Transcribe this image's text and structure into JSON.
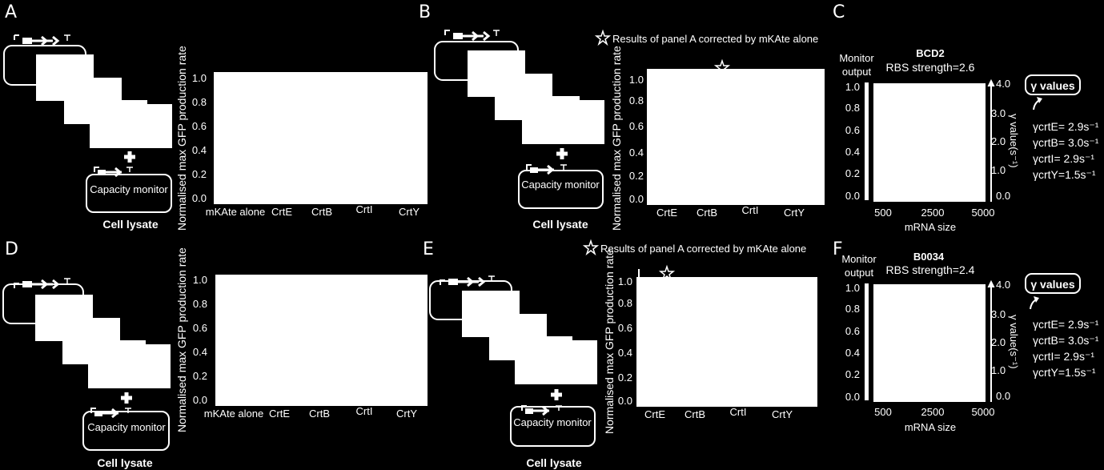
{
  "colors": {
    "background": "#000000",
    "foreground": "#ffffff"
  },
  "panel_labels": [
    "A",
    "B",
    "C",
    "D",
    "E",
    "F"
  ],
  "common": {
    "ylabel": "Normalised max GFP production rate",
    "capacity_monitor": "Capacity monitor",
    "cell_lysate": "Cell lysate",
    "yticks": [
      "0.0",
      "0.2",
      "0.4",
      "0.6",
      "0.8",
      "1.0"
    ],
    "yticks_be": [
      "0.0",
      "0.2",
      "0.4",
      "0.6",
      "0.8",
      "1.0"
    ],
    "star_note": "Results of panel A corrected by mKAte alone"
  },
  "panel_c": {
    "title": "BCD2",
    "subtitle": "RBS strength=2.6",
    "monitor_output_1": "Monitor",
    "monitor_output_2": "output",
    "left_ticks": [
      "0.0",
      "0.2",
      "0.4",
      "0.6",
      "0.8",
      "1.0"
    ],
    "right_ticks": [
      "0.0",
      "1.0",
      "2.0",
      "3.0",
      "4.0"
    ],
    "right_label": "γ value(s⁻¹)",
    "x_ticks": [
      "500",
      "2500",
      "5000"
    ],
    "xlabel": "mRNA size",
    "gamma_box": "γ values",
    "gamma_lines": [
      "γcrtE= 2.9s⁻¹",
      "γcrtB= 3.0s⁻¹",
      "γcrtI= 2.9s⁻¹",
      "γcrtY=1.5s⁻¹"
    ]
  },
  "panel_f": {
    "title": "B0034",
    "subtitle": "RBS strength=2.4"
  },
  "chart_data": [
    {
      "panel": "A",
      "type": "bar",
      "categories": [
        "mKAte alone",
        "CrtE",
        "CrtB",
        "CrtI",
        "CrtY"
      ],
      "ylabel": "Normalised max GFP production rate",
      "ylim": [
        0,
        1.0
      ]
    },
    {
      "panel": "B",
      "type": "bar",
      "categories": [
        "CrtE",
        "CrtB",
        "CrtI",
        "CrtY"
      ],
      "ylabel": "Normalised max GFP production rate",
      "ylim": [
        0,
        1.0
      ]
    },
    {
      "panel": "C",
      "type": "line",
      "xlabel": "mRNA size",
      "x_ticks": [
        500,
        2500,
        5000
      ],
      "ylim_left": [
        0,
        1.0
      ],
      "ylim_right": [
        0,
        4.0
      ]
    },
    {
      "panel": "D",
      "type": "bar",
      "categories": [
        "mKAte alone",
        "CrtE",
        "CrtB",
        "CrtI",
        "CrtY"
      ],
      "ylabel": "Normalised max GFP production rate",
      "ylim": [
        0,
        1.0
      ]
    },
    {
      "panel": "E",
      "type": "bar",
      "categories": [
        "CrtE",
        "CrtB",
        "CrtI",
        "CrtY"
      ],
      "ylabel": "Normalised max GFP production rate",
      "ylim": [
        0,
        1.0
      ]
    },
    {
      "panel": "F",
      "type": "line",
      "xlabel": "mRNA size",
      "x_ticks": [
        500,
        2500,
        5000
      ],
      "ylim_left": [
        0,
        1.0
      ],
      "ylim_right": [
        0,
        4.0
      ]
    }
  ]
}
